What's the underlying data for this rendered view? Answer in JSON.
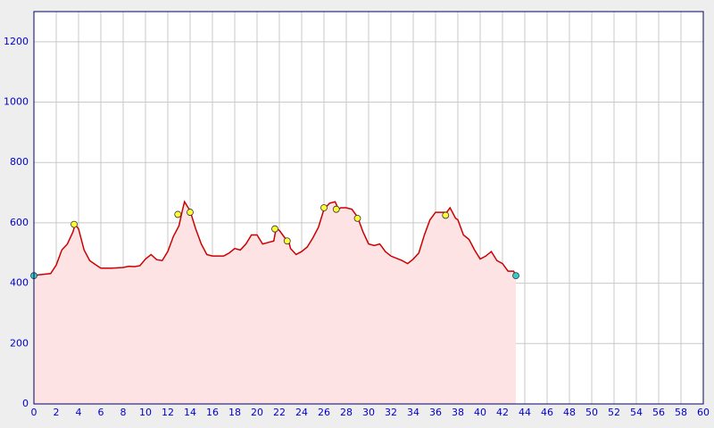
{
  "chart_data": {
    "type": "area",
    "xlim": [
      0,
      60
    ],
    "xticks": [
      0,
      2,
      4,
      6,
      8,
      10,
      12,
      14,
      16,
      18,
      20,
      22,
      24,
      26,
      28,
      30,
      32,
      34,
      36,
      38,
      40,
      42,
      44,
      46,
      48,
      50,
      52,
      54,
      56,
      58,
      60
    ],
    "ylim": [
      0,
      1300
    ],
    "yticks": [
      0,
      200,
      400,
      600,
      800,
      1000,
      1200
    ],
    "grid": true,
    "series": [
      {
        "color": "#cc0000",
        "fill": "#fde3e3",
        "x": [
          0,
          0.5,
          1.5,
          2,
          2.5,
          3,
          3.5,
          3.7,
          4,
          4.5,
          5,
          5.5,
          6,
          7,
          8,
          8.5,
          9,
          9.5,
          10,
          10.5,
          11,
          11.5,
          12,
          12.5,
          13,
          13.3,
          13.5,
          14,
          14.5,
          15,
          15.5,
          16,
          17,
          17.5,
          18,
          18.5,
          19,
          19.5,
          20,
          20.5,
          21,
          21.5,
          21.7,
          22,
          22.5,
          22.8,
          23,
          23.5,
          24,
          24.5,
          25,
          25.5,
          26,
          26.5,
          27,
          27.3,
          27.5,
          28,
          28.5,
          29,
          29.5,
          30,
          30.5,
          31,
          31.5,
          32,
          33,
          33.5,
          34,
          34.5,
          35,
          35.5,
          36,
          37,
          37.3,
          37.8,
          38,
          38.5,
          39,
          39.5,
          40,
          40.5,
          41,
          41.5,
          42,
          42.5,
          43,
          43.2
        ],
        "values": [
          425,
          428,
          432,
          460,
          510,
          530,
          570,
          595,
          580,
          510,
          475,
          462,
          450,
          450,
          452,
          456,
          455,
          458,
          480,
          495,
          478,
          475,
          505,
          555,
          590,
          640,
          670,
          640,
          580,
          530,
          495,
          490,
          490,
          500,
          515,
          510,
          530,
          560,
          560,
          530,
          535,
          540,
          580,
          575,
          550,
          545,
          515,
          495,
          505,
          520,
          550,
          585,
          645,
          665,
          670,
          645,
          650,
          650,
          645,
          620,
          570,
          530,
          525,
          530,
          505,
          490,
          475,
          465,
          480,
          500,
          560,
          610,
          635,
          635,
          650,
          615,
          610,
          560,
          545,
          510,
          480,
          490,
          505,
          475,
          465,
          440,
          440,
          425
        ]
      },
      {
        "type": "points",
        "color": "#ffff33",
        "x": [
          3.6,
          12.9,
          14,
          21.6,
          22.7,
          26,
          27.1,
          29,
          36.9
        ],
        "values": [
          595,
          628,
          635,
          580,
          540,
          650,
          645,
          615,
          625
        ]
      },
      {
        "type": "points",
        "color": "#33cccc",
        "x": [
          0,
          43.2
        ],
        "values": [
          425,
          425
        ]
      }
    ]
  }
}
